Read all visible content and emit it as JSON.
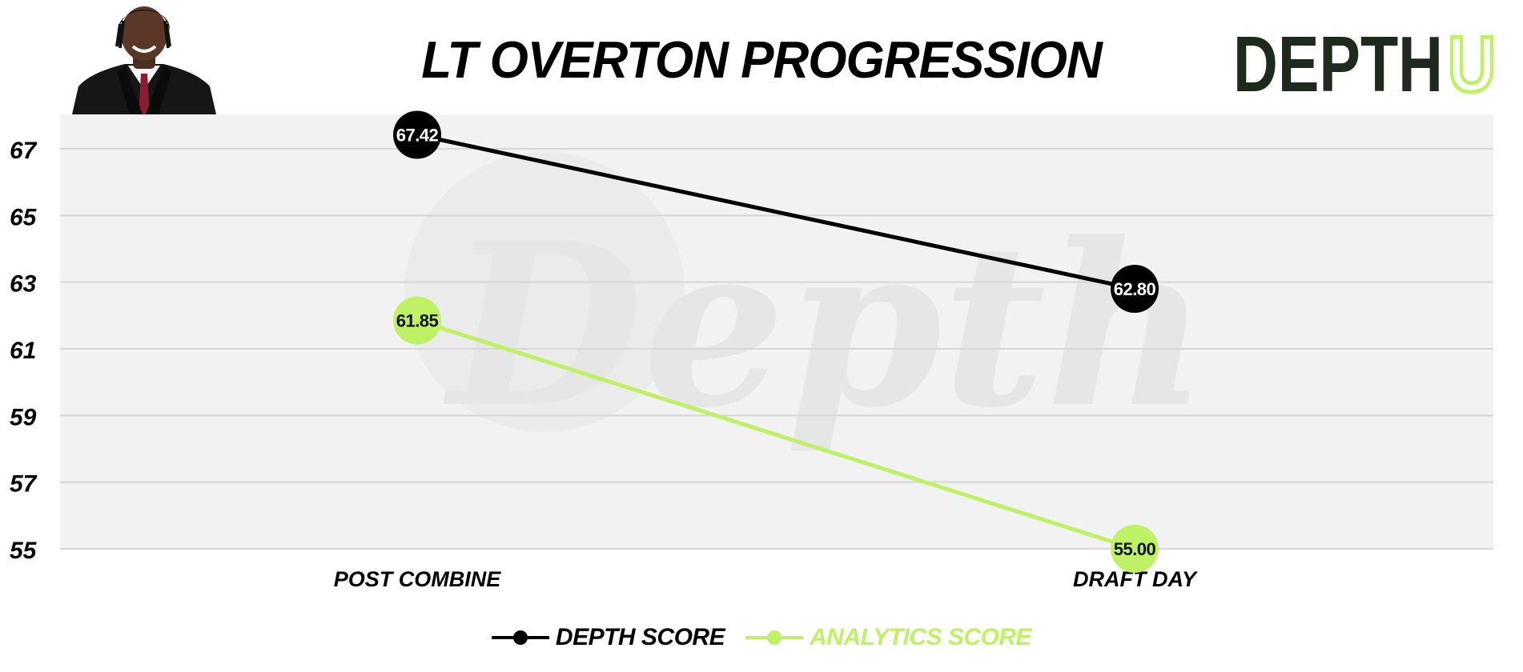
{
  "header": {
    "title": "LT OVERTON PROGRESSION",
    "logo_main": "DEPTH",
    "logo_accent": "U"
  },
  "watermark": "Depth",
  "colors": {
    "depth": "#000000",
    "analytics": "#bef264",
    "plot_bg": "#f2f2f2",
    "grid": "#d6d6d6",
    "logo_dark": "#1f2a1f",
    "logo_accent": "#bef264"
  },
  "chart_data": {
    "type": "line",
    "title": "LT OVERTON PROGRESSION",
    "categories": [
      "POST COMBINE",
      "DRAFT DAY"
    ],
    "ylim": [
      55,
      68
    ],
    "yticks": [
      55,
      57,
      59,
      61,
      63,
      65,
      67
    ],
    "grid": true,
    "legend_position": "bottom-center",
    "series": [
      {
        "name": "DEPTH SCORE",
        "values": [
          67.42,
          62.8
        ],
        "labels": [
          "67.42",
          "62.80"
        ],
        "color": "#000000",
        "label_color": "#ffffff"
      },
      {
        "name": "ANALYTICS SCORE",
        "values": [
          61.85,
          55.0
        ],
        "labels": [
          "61.85",
          "55.00"
        ],
        "color": "#bef264",
        "label_color": "#111111"
      }
    ]
  }
}
